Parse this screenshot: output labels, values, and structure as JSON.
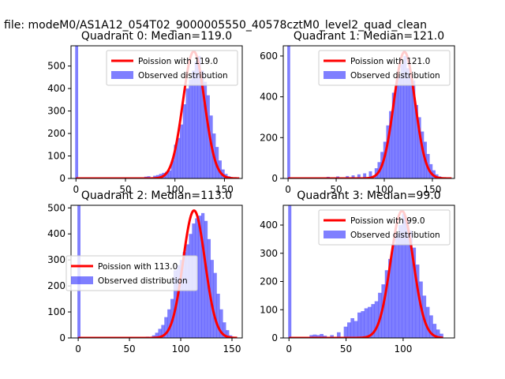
{
  "figure": {
    "suptitle": "a file: modeM0/AS1A12_054T02_9000005550_40578cztM0_level2_quad_clean"
  },
  "colors": {
    "hist": "#0000ff",
    "hist_alpha": 0.5,
    "poisson_line": "#ff0000",
    "axes": "#000000"
  },
  "chart_data": [
    {
      "type": "bar",
      "title": "Quadrant 0: Median=119.0",
      "xlim": [
        -5,
        168
      ],
      "ylim": [
        0,
        590
      ],
      "xticks": [
        0,
        50,
        100,
        150
      ],
      "yticks": [
        0,
        100,
        200,
        300,
        400,
        500
      ],
      "legend_position": "upper-right",
      "series": [
        {
          "name": "Poission with 119.0",
          "kind": "line",
          "mean": 119.0,
          "peak": 565,
          "x_range": [
            0,
            165
          ]
        },
        {
          "name": "Observed distribution",
          "kind": "histogram",
          "bin_width": 3,
          "spike": {
            "x": 0,
            "height": 590
          },
          "bins_x": [
            60,
            63,
            66,
            69,
            72,
            75,
            78,
            81,
            84,
            87,
            90,
            93,
            96,
            99,
            102,
            105,
            108,
            111,
            114,
            117,
            120,
            123,
            126,
            129,
            132,
            135,
            138,
            141,
            144,
            147,
            150,
            153,
            156,
            159
          ],
          "bins_y": [
            2,
            3,
            5,
            8,
            10,
            5,
            12,
            15,
            20,
            25,
            30,
            35,
            80,
            150,
            180,
            240,
            330,
            400,
            440,
            480,
            520,
            545,
            480,
            430,
            370,
            280,
            200,
            140,
            80,
            40,
            20,
            10,
            5,
            2
          ]
        }
      ]
    },
    {
      "type": "bar",
      "title": "Quadrant 1: Median=121.0",
      "xlim": [
        -5,
        173
      ],
      "ylim": [
        0,
        650
      ],
      "xticks": [
        0,
        50,
        100,
        150
      ],
      "yticks": [
        0,
        200,
        400,
        600
      ],
      "legend_position": "upper-right",
      "series": [
        {
          "name": "Poission with 121.0",
          "kind": "line",
          "mean": 121.0,
          "peak": 620,
          "x_range": [
            0,
            170
          ]
        },
        {
          "name": "Observed distribution",
          "kind": "histogram",
          "bin_width": 3,
          "spike": {
            "x": 0,
            "height": 650
          },
          "bins_x": [
            30,
            40,
            50,
            60,
            66,
            72,
            78,
            84,
            90,
            93,
            96,
            99,
            102,
            105,
            108,
            111,
            114,
            117,
            120,
            123,
            126,
            129,
            132,
            135,
            138,
            141,
            144,
            147,
            150,
            153,
            156,
            159,
            162
          ],
          "bins_y": [
            5,
            8,
            10,
            12,
            15,
            20,
            25,
            35,
            50,
            80,
            130,
            180,
            260,
            330,
            420,
            460,
            500,
            560,
            600,
            540,
            500,
            480,
            360,
            300,
            230,
            180,
            120,
            70,
            40,
            20,
            10,
            5,
            2
          ]
        }
      ]
    },
    {
      "type": "bar",
      "title": "Quadrant 2: Median=113.0",
      "xlim": [
        -7,
        160
      ],
      "ylim": [
        0,
        510
      ],
      "xticks": [
        0,
        50,
        100,
        150
      ],
      "yticks": [
        0,
        100,
        200,
        300,
        400,
        500
      ],
      "legend_position": "center-left",
      "series": [
        {
          "name": "Poission with 113.0",
          "kind": "line",
          "mean": 113.0,
          "peak": 490,
          "x_range": [
            0,
            155
          ]
        },
        {
          "name": "Observed distribution",
          "kind": "histogram",
          "bin_width": 3,
          "spike": {
            "x": 0,
            "height": 510
          },
          "bins_x": [
            66,
            72,
            75,
            78,
            81,
            84,
            87,
            90,
            93,
            96,
            99,
            102,
            105,
            108,
            111,
            114,
            117,
            120,
            123,
            126,
            129,
            132,
            135,
            138,
            141,
            144,
            147
          ],
          "bins_y": [
            5,
            10,
            20,
            35,
            50,
            80,
            110,
            150,
            260,
            280,
            300,
            330,
            360,
            400,
            440,
            460,
            470,
            480,
            450,
            380,
            300,
            250,
            170,
            110,
            60,
            30,
            10
          ]
        }
      ]
    },
    {
      "type": "bar",
      "title": "Quadrant 3: Median=99.0",
      "xlim": [
        -5,
        145
      ],
      "ylim": [
        0,
        470
      ],
      "xticks": [
        0,
        50,
        100
      ],
      "yticks": [
        0,
        100,
        200,
        300,
        400
      ],
      "legend_position": "upper-right",
      "series": [
        {
          "name": "Poission with 99.0",
          "kind": "line",
          "mean": 99.0,
          "peak": 450,
          "x_range": [
            0,
            135
          ]
        },
        {
          "name": "Observed distribution",
          "kind": "histogram",
          "bin_width": 3,
          "spike": {
            "x": 0,
            "height": 470
          },
          "bins_x": [
            18,
            21,
            24,
            27,
            30,
            36,
            42,
            48,
            51,
            54,
            57,
            60,
            63,
            66,
            69,
            72,
            75,
            78,
            81,
            84,
            87,
            90,
            93,
            96,
            99,
            102,
            105,
            108,
            111,
            114,
            117,
            120,
            123,
            126,
            129,
            132
          ],
          "bins_y": [
            10,
            12,
            10,
            14,
            8,
            10,
            20,
            40,
            55,
            70,
            60,
            90,
            95,
            105,
            110,
            120,
            130,
            160,
            190,
            240,
            280,
            330,
            370,
            400,
            440,
            420,
            380,
            320,
            260,
            200,
            150,
            110,
            80,
            50,
            30,
            15
          ]
        }
      ]
    }
  ]
}
